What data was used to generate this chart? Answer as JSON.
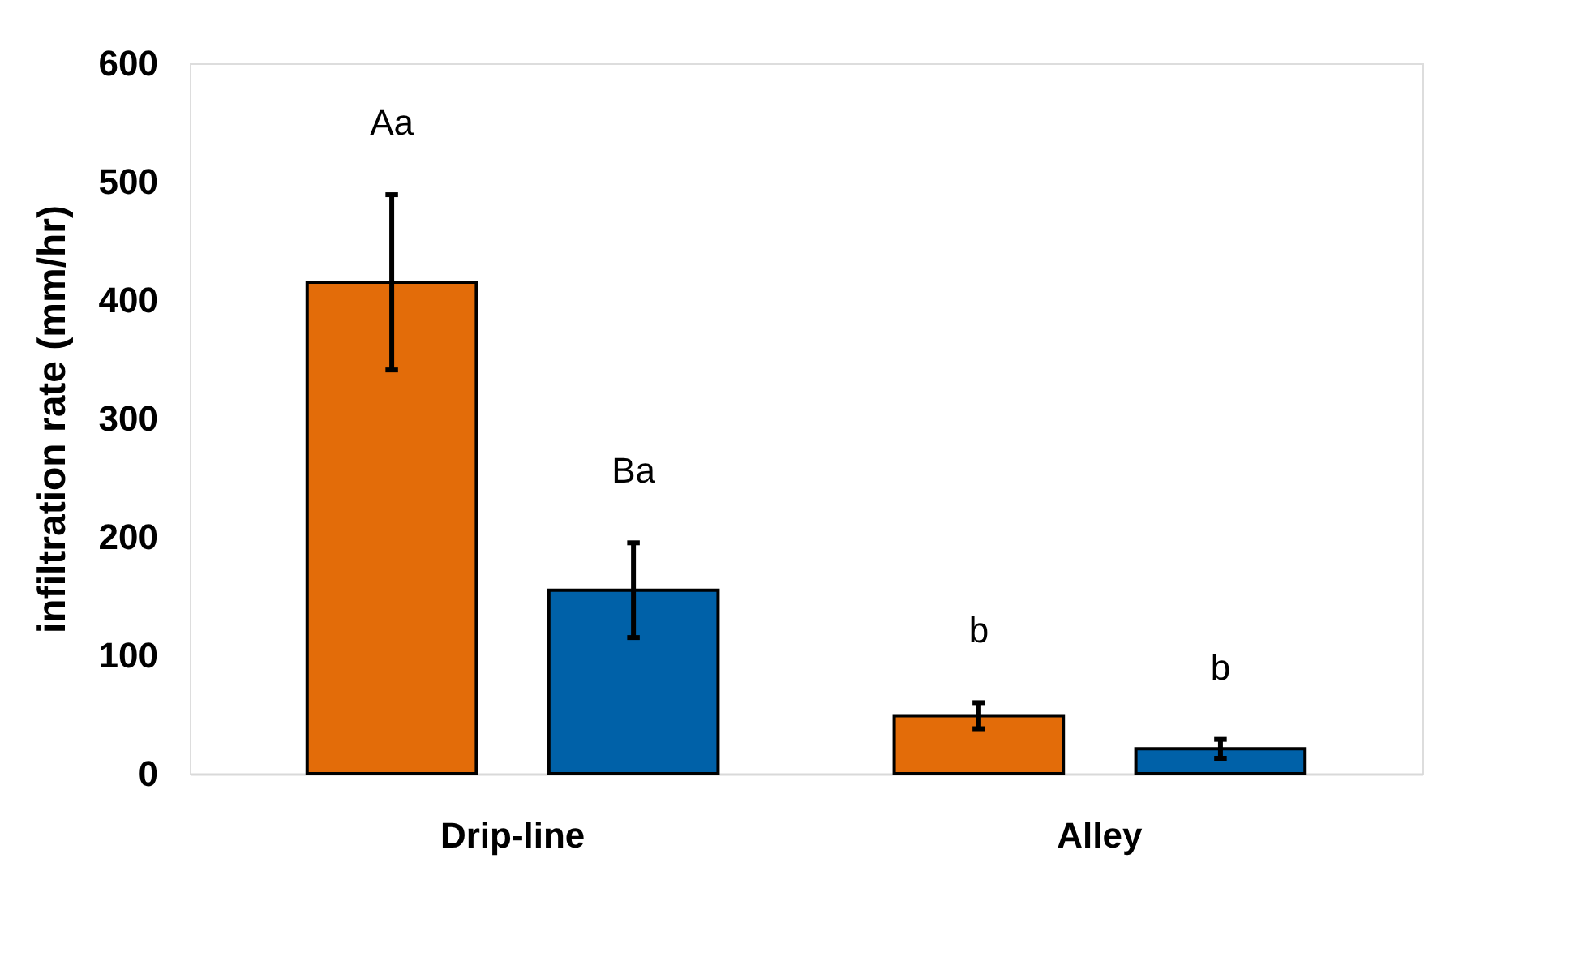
{
  "chart_data": {
    "type": "bar",
    "ylabel": "infiltration rate (mm/hr)",
    "categories": [
      "Drip-line",
      "Alley"
    ],
    "series": [
      {
        "color": "#e36c09",
        "values": [
          415,
          49
        ],
        "errors": [
          74,
          11
        ]
      },
      {
        "color": "#0061a8",
        "values": [
          155,
          21
        ],
        "errors": [
          40,
          8
        ]
      }
    ],
    "ylim": [
      0,
      600
    ],
    "yticks": [
      0,
      100,
      200,
      300,
      400,
      500,
      600
    ],
    "grid": false,
    "legend": false,
    "annotations": [
      "Aa",
      "Ba",
      "b",
      "b"
    ]
  }
}
